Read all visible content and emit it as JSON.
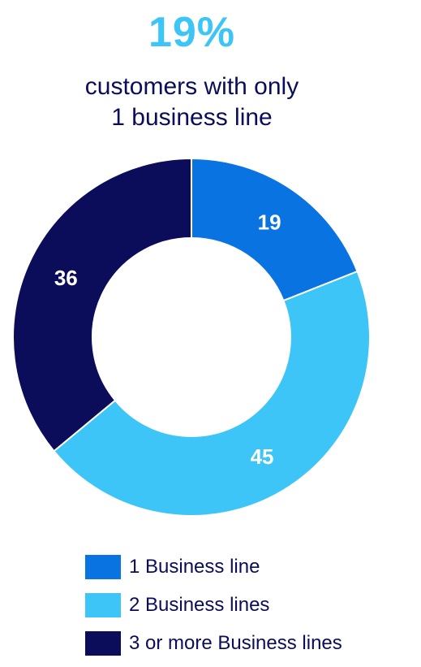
{
  "header": {
    "headline": "19%",
    "subtitle_line1": "customers with only",
    "subtitle_line2": "1 business line"
  },
  "colors": {
    "one_line": "#0A73E2",
    "two_lines": "#3DC5F7",
    "three_plus": "#0C0D5A",
    "text_dark": "#0C0D5A"
  },
  "chart_data": {
    "type": "pie",
    "variant": "donut",
    "categories": [
      "1 Business line",
      "2 Business lines",
      "3 or more Business lines"
    ],
    "values": [
      19,
      45,
      36
    ],
    "data_labels": [
      "19",
      "45",
      "36"
    ],
    "colors": [
      "#0A73E2",
      "#3DC5F7",
      "#0C0D5A"
    ],
    "legend_position": "bottom"
  }
}
